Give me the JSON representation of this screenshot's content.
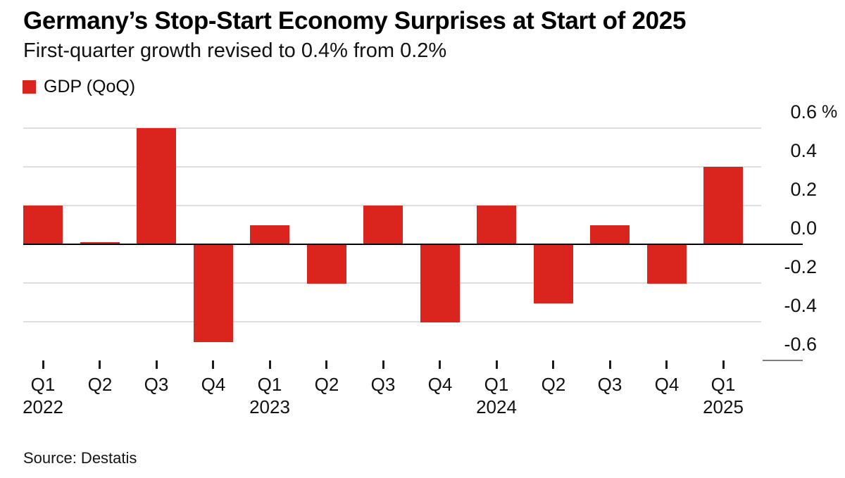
{
  "header": {
    "title": "Germany’s Stop-Start Economy Surprises at Start of 2025",
    "subtitle": "First-quarter growth revised to 0.4% from 0.2%"
  },
  "legend": {
    "label": "GDP (QoQ)",
    "swatch_color": "#d9251e"
  },
  "footer": {
    "source": "Source: Destatis"
  },
  "chart_data": {
    "type": "bar",
    "title": "Germany’s Stop-Start Economy Surprises at Start of 2025",
    "subtitle": "First-quarter growth revised to 0.4% from 0.2%",
    "series_name": "GDP (QoQ)",
    "unit": "%",
    "categories": [
      "Q1 2022",
      "Q2 2022",
      "Q3 2022",
      "Q4 2022",
      "Q1 2023",
      "Q2 2023",
      "Q3 2023",
      "Q4 2023",
      "Q1 2024",
      "Q2 2024",
      "Q3 2024",
      "Q4 2024",
      "Q1 2025"
    ],
    "values": [
      0.2,
      0.0,
      0.6,
      -0.5,
      0.1,
      -0.2,
      0.2,
      -0.4,
      0.2,
      -0.3,
      0.1,
      -0.2,
      0.4
    ],
    "x_tick_labels": [
      "Q1",
      "Q2",
      "Q3",
      "Q4",
      "Q1",
      "Q2",
      "Q3",
      "Q4",
      "Q1",
      "Q2",
      "Q3",
      "Q4",
      "Q1"
    ],
    "year_labels": [
      {
        "at_index": 0,
        "label": "2022"
      },
      {
        "at_index": 4,
        "label": "2023"
      },
      {
        "at_index": 8,
        "label": "2024"
      },
      {
        "at_index": 12,
        "label": "2025"
      }
    ],
    "y_ticks": [
      {
        "value": 0.6,
        "label": "0.6",
        "unit": "%"
      },
      {
        "value": 0.4,
        "label": "0.4"
      },
      {
        "value": 0.2,
        "label": "0.2"
      },
      {
        "value": 0.0,
        "label": "0.0",
        "underline": "black"
      },
      {
        "value": -0.2,
        "label": "-0.2"
      },
      {
        "value": -0.4,
        "label": "-0.4"
      },
      {
        "value": -0.6,
        "label": "-0.6",
        "underline": "gray",
        "no_gridline": true
      }
    ],
    "ylim": [
      -0.65,
      0.7
    ],
    "grid": true,
    "legend_position": "top-left",
    "bar_color": "#d9251e",
    "gridline_color": "#dedede",
    "zero_line_color": "#000000",
    "source": "Source: Destatis"
  }
}
